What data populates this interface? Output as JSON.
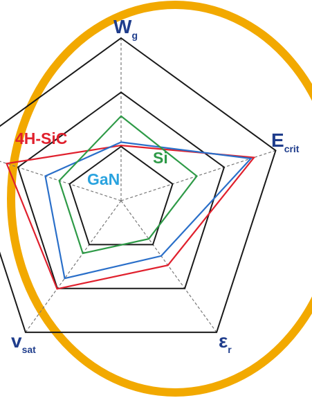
{
  "chart_data": {
    "type": "radar",
    "title": "",
    "axes": [
      {
        "main": "W",
        "sub": "g"
      },
      {
        "main": "E",
        "sub": "crit"
      },
      {
        "main": "ε",
        "sub": "r"
      },
      {
        "main": "v",
        "sub": "sat"
      },
      {
        "main": "",
        "sub": ""
      }
    ],
    "rings": 3,
    "series": [
      {
        "name": "4H-SiC",
        "color": "#e0202d",
        "values": [
          0.34,
          0.86,
          0.49,
          0.67,
          0.74
        ]
      },
      {
        "name": "GaN",
        "color": "#2a6fc9",
        "values": [
          0.36,
          0.84,
          0.42,
          0.59,
          0.49
        ]
      },
      {
        "name": "Si",
        "color": "#2e9a47",
        "values": [
          0.52,
          0.49,
          0.29,
          0.4,
          0.4
        ]
      }
    ],
    "series_label_colors": {
      "4H-SiC": "#e0202d",
      "GaN": "#2aa3df",
      "Si": "#2e9a47"
    },
    "frame_color": "#1a1a1a",
    "grid_color": "#777777",
    "axis_label_color": "#1f3d8c",
    "ring_color": "#f2a900"
  }
}
